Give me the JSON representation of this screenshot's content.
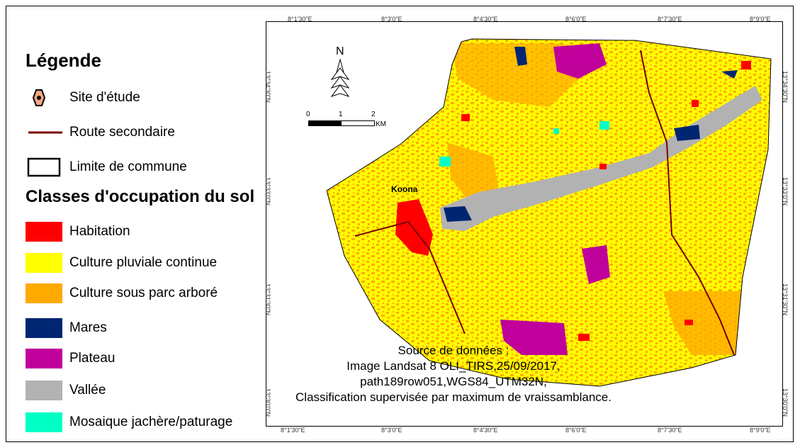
{
  "legend": {
    "title": "Légende",
    "site": "Site d'étude",
    "road": "Route secondaire",
    "limit": "Limite de commune",
    "classes_title": "Classes d'occupation du sol",
    "classes": [
      {
        "label": "Habitation",
        "color": "#ff0000"
      },
      {
        "label": "Culture pluviale continue",
        "color": "#ffff00"
      },
      {
        "label": "Culture sous parc arboré",
        "color": "#ffaa00"
      },
      {
        "label": "Mares",
        "color": "#002673"
      },
      {
        "label": "Plateau",
        "color": "#c0009b"
      },
      {
        "label": "Vallée",
        "color": "#b2b2b2"
      },
      {
        "label": "Mosaique jachère/paturage",
        "color": "#00ffc5"
      }
    ]
  },
  "map": {
    "place_label": "Koona",
    "north": "N",
    "scale": {
      "zero": "0",
      "one": "1",
      "two": "2",
      "unit": "KM"
    },
    "ticks_x": [
      "8°1'30\"E",
      "8°3'0\"E",
      "8°4'30\"E",
      "8°6'0\"E",
      "8°7'30\"E",
      "8°9'0\"E"
    ],
    "ticks_y": [
      "13°34'30\"N",
      "13°33'0\"N",
      "13°31'30\"N",
      "13°30'0\"N"
    ],
    "source": [
      "Source de données :",
      "Image Landsat 8 OLI_TIRS,25/09/2017,",
      "path189row051,WGS84_UTM32N,",
      "Classification supervisée par maximum de vraissamblance."
    ],
    "colors": {
      "road": "#7a0000",
      "boundary": "#000000",
      "site_fill": "#f4a582"
    }
  }
}
